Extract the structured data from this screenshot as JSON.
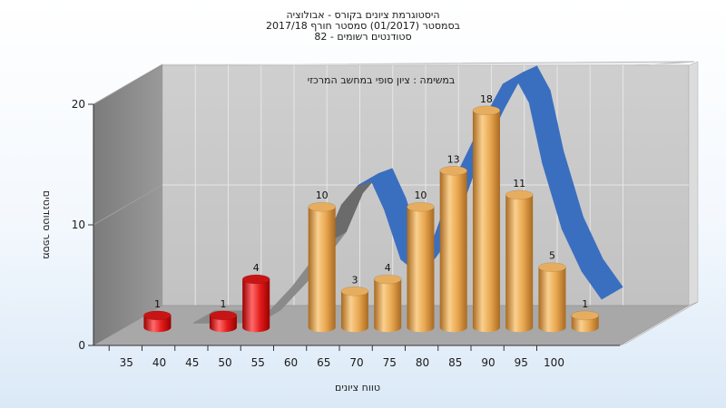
{
  "chart_data": {
    "type": "bar",
    "title_lines": [
      "היסטוגרמת ציונים בקורס - אבולוציה",
      "בסמסטר  (01/2017)  סמסטר חורף  2017/18",
      "סטודנטים רשומים - 82"
    ],
    "subtitle": "במשימה : ציון סופי במחשב המרכזי",
    "xlabel": "טווח ציונים",
    "ylabel": "מספר סטודנטים",
    "ylim": [
      0,
      20
    ],
    "yticks": [
      0,
      10,
      20
    ],
    "xticks": [
      "35",
      "40",
      "45",
      "50",
      "55",
      "60",
      "65",
      "70",
      "75",
      "80",
      "85",
      "90",
      "95",
      "100"
    ],
    "bars": [
      {
        "x": 35,
        "value": 1,
        "label": "1",
        "group": "fail"
      },
      {
        "x": 45,
        "value": 1,
        "label": "1",
        "group": "fail"
      },
      {
        "x": 50,
        "value": 4,
        "label": "4",
        "group": "fail"
      },
      {
        "x": 60,
        "value": 10,
        "label": "10",
        "group": "pass"
      },
      {
        "x": 65,
        "value": 3,
        "label": "3",
        "group": "pass"
      },
      {
        "x": 70,
        "value": 4,
        "label": "4",
        "group": "pass"
      },
      {
        "x": 75,
        "value": 10,
        "label": "10",
        "group": "pass"
      },
      {
        "x": 80,
        "value": 13,
        "label": "13",
        "group": "pass"
      },
      {
        "x": 85,
        "value": 18,
        "label": "18",
        "group": "pass"
      },
      {
        "x": 90,
        "value": 11,
        "label": "11",
        "group": "pass"
      },
      {
        "x": 95,
        "value": 5,
        "label": "5",
        "group": "pass"
      },
      {
        "x": 100,
        "value": 1,
        "label": "1",
        "group": "pass"
      }
    ],
    "curve": [
      {
        "x": 40,
        "y": 0.2
      },
      {
        "x": 45,
        "y": 0.2
      },
      {
        "x": 50,
        "y": 0.3
      },
      {
        "x": 55,
        "y": 3.2
      },
      {
        "x": 60,
        "y": 6.8
      },
      {
        "x": 62.5,
        "y": 10.0
      },
      {
        "x": 65,
        "y": 11.6
      },
      {
        "x": 67,
        "y": 12.0
      },
      {
        "x": 69,
        "y": 9.6
      },
      {
        "x": 71.5,
        "y": 5.5
      },
      {
        "x": 73.5,
        "y": 4.6
      },
      {
        "x": 76,
        "y": 6.5
      },
      {
        "x": 80,
        "y": 12.5
      },
      {
        "x": 84,
        "y": 17.0
      },
      {
        "x": 87,
        "y": 20.0
      },
      {
        "x": 89,
        "y": 20.5
      },
      {
        "x": 91,
        "y": 18.5
      },
      {
        "x": 93,
        "y": 13.5
      },
      {
        "x": 96,
        "y": 8.0
      },
      {
        "x": 99,
        "y": 4.5
      },
      {
        "x": 102,
        "y": 2.2
      }
    ],
    "colors": {
      "fail": "#e02020",
      "pass": "#e3a14d",
      "curve": "#3a6fc0",
      "curve_shadow": "#8a8a8a",
      "back_wall": "#c8c8c8",
      "side_wall": "#8c8c8c",
      "floor": "#a6a6a6",
      "grid": "#e6e6e6"
    },
    "grid": true,
    "legend": "none"
  }
}
